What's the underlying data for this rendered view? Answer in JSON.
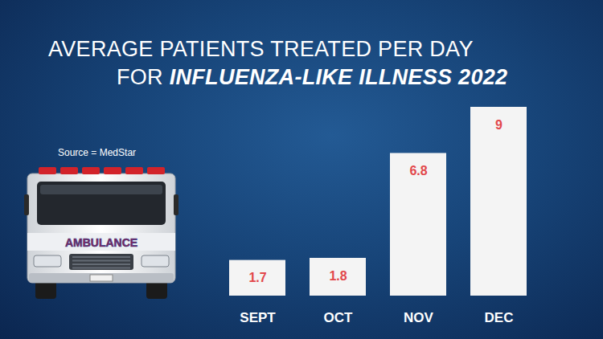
{
  "chart_data": {
    "type": "bar",
    "title": "AVERAGE PATIENTS TREATED PER DAY",
    "subtitle": "FOR INFLUENZA-LIKE ILLNESS 2022",
    "annotations": [
      "Source = MedStar",
      "AMBULANCE"
    ],
    "categories": [
      "SEPT",
      "OCT",
      "NOV",
      "DEC"
    ],
    "values": [
      1.7,
      1.8,
      6.8,
      9
    ],
    "color": "#f4f4f4",
    "ylim": [
      0,
      9
    ],
    "yticks": [],
    "grid": false,
    "data_labels": true,
    "tick_labels": "x"
  }
}
